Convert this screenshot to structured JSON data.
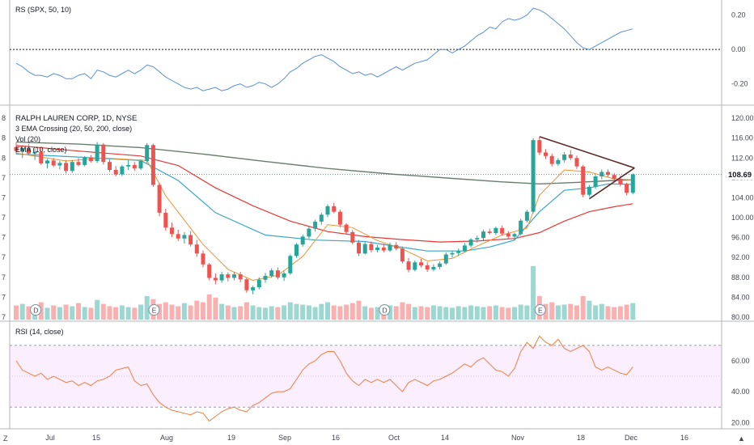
{
  "chart_data": {
    "type": "candlestick",
    "symbol_title": "RALPH LAUREN CORP, 1D, NYSE",
    "indicator_labels": [
      "3 EMA Crossing (20, 50, 200, close)",
      "Vol (20)",
      "EMA (10, close)"
    ],
    "last_price_label": "108.69",
    "price_axis": {
      "ticks": [
        "120.00",
        "116.00",
        "112.00",
        "108.00",
        "104.00",
        "100.00",
        "96.00",
        "92.00",
        "88.00",
        "84.00",
        "80.00"
      ],
      "ylim": [
        79.5,
        121
      ]
    },
    "left_tick_labels": [
      "8",
      "8",
      "8",
      "7",
      "7",
      "7",
      "7",
      "7",
      "7",
      "7",
      "7"
    ],
    "x_axis": {
      "labels": [
        "Jul",
        "15",
        "Aug",
        "19",
        "Sep",
        "16",
        "Oct",
        "14",
        "Nov",
        "18",
        "Dec",
        "16"
      ]
    },
    "event_markers": [
      "D",
      "E",
      "D",
      "E"
    ],
    "candles": [
      [
        114.2,
        115.1,
        112.8,
        113.4
      ],
      [
        113.4,
        114.6,
        112.0,
        114.0
      ],
      [
        114.0,
        114.8,
        112.5,
        112.9
      ],
      [
        112.9,
        113.9,
        111.6,
        113.2
      ],
      [
        113.2,
        113.8,
        110.6,
        110.9
      ],
      [
        110.9,
        111.8,
        109.9,
        111.5
      ],
      [
        111.5,
        112.0,
        110.2,
        110.5
      ],
      [
        110.5,
        111.4,
        109.7,
        111.0
      ],
      [
        111.0,
        111.6,
        108.9,
        109.4
      ],
      [
        109.4,
        111.6,
        109.0,
        111.2
      ],
      [
        111.2,
        112.0,
        110.3,
        110.6
      ],
      [
        110.6,
        112.4,
        110.3,
        112.1
      ],
      [
        112.1,
        112.6,
        111.1,
        111.4
      ],
      [
        111.4,
        115.2,
        111.0,
        114.7
      ],
      [
        114.7,
        115.0,
        110.7,
        111.2
      ],
      [
        111.2,
        111.7,
        109.2,
        109.6
      ],
      [
        109.6,
        110.4,
        108.3,
        108.7
      ],
      [
        108.7,
        110.6,
        108.4,
        110.3
      ],
      [
        110.3,
        111.6,
        109.6,
        110.6
      ],
      [
        110.6,
        111.2,
        109.4,
        109.9
      ],
      [
        109.9,
        111.7,
        109.6,
        111.4
      ],
      [
        111.4,
        115.0,
        111.0,
        114.6
      ],
      [
        114.6,
        114.9,
        106.2,
        106.6
      ],
      [
        106.6,
        107.0,
        100.3,
        101.0
      ],
      [
        101.0,
        101.8,
        97.4,
        98.0
      ],
      [
        98.0,
        99.0,
        96.1,
        96.7
      ],
      [
        96.7,
        97.6,
        95.3,
        95.8
      ],
      [
        95.8,
        97.1,
        94.8,
        96.5
      ],
      [
        96.5,
        97.3,
        94.2,
        94.6
      ],
      [
        94.6,
        95.5,
        92.1,
        92.8
      ],
      [
        92.8,
        93.4,
        90.0,
        90.6
      ],
      [
        90.6,
        90.9,
        87.4,
        87.9
      ],
      [
        87.9,
        88.8,
        86.6,
        87.4
      ],
      [
        87.4,
        89.1,
        86.9,
        88.6
      ],
      [
        88.6,
        89.0,
        87.2,
        87.9
      ],
      [
        87.9,
        89.1,
        87.4,
        88.6
      ],
      [
        88.6,
        89.1,
        87.0,
        87.6
      ],
      [
        87.6,
        87.9,
        84.9,
        85.4
      ],
      [
        85.4,
        86.3,
        84.6,
        86.0
      ],
      [
        86.0,
        88.0,
        85.6,
        87.5
      ],
      [
        87.5,
        88.9,
        86.9,
        88.3
      ],
      [
        88.3,
        89.8,
        87.9,
        89.4
      ],
      [
        89.4,
        90.0,
        87.6,
        88.0
      ],
      [
        88.0,
        89.2,
        87.3,
        88.8
      ],
      [
        88.8,
        92.6,
        88.5,
        92.3
      ],
      [
        92.3,
        94.9,
        91.9,
        94.6
      ],
      [
        94.6,
        96.6,
        94.2,
        96.2
      ],
      [
        96.2,
        98.2,
        95.8,
        97.8
      ],
      [
        97.8,
        99.6,
        97.2,
        99.2
      ],
      [
        99.2,
        101.0,
        98.6,
        100.6
      ],
      [
        100.6,
        102.7,
        100.1,
        102.3
      ],
      [
        102.3,
        103.0,
        100.9,
        101.2
      ],
      [
        101.2,
        101.6,
        98.1,
        98.6
      ],
      [
        98.6,
        98.9,
        96.6,
        97.1
      ],
      [
        97.1,
        97.5,
        94.6,
        95.0
      ],
      [
        95.0,
        95.5,
        92.3,
        92.8
      ],
      [
        92.8,
        95.1,
        92.6,
        94.7
      ],
      [
        94.7,
        95.2,
        93.0,
        93.5
      ],
      [
        93.5,
        94.5,
        93.0,
        94.0
      ],
      [
        94.0,
        94.8,
        93.0,
        93.4
      ],
      [
        93.4,
        95.0,
        93.1,
        94.5
      ],
      [
        94.5,
        95.1,
        93.4,
        93.8
      ],
      [
        93.8,
        94.2,
        90.8,
        91.2
      ],
      [
        91.2,
        91.9,
        89.0,
        89.5
      ],
      [
        89.5,
        91.4,
        89.2,
        91.0
      ],
      [
        91.0,
        91.7,
        90.0,
        90.4
      ],
      [
        90.4,
        91.0,
        89.1,
        89.6
      ],
      [
        89.6,
        90.6,
        89.2,
        90.1
      ],
      [
        90.1,
        91.2,
        89.6,
        90.8
      ],
      [
        90.8,
        93.0,
        90.5,
        92.6
      ],
      [
        92.6,
        93.4,
        92.0,
        92.9
      ],
      [
        92.9,
        93.8,
        92.3,
        93.3
      ],
      [
        93.3,
        94.9,
        93.0,
        94.4
      ],
      [
        94.4,
        95.9,
        94.0,
        95.6
      ],
      [
        95.6,
        96.4,
        95.0,
        95.9
      ],
      [
        95.9,
        97.6,
        95.4,
        97.2
      ],
      [
        97.2,
        97.8,
        96.6,
        96.9
      ],
      [
        96.9,
        98.2,
        96.5,
        97.9
      ],
      [
        97.9,
        98.4,
        96.4,
        96.8
      ],
      [
        96.8,
        97.3,
        95.7,
        96.2
      ],
      [
        96.2,
        97.0,
        95.6,
        96.7
      ],
      [
        96.7,
        99.8,
        96.4,
        99.4
      ],
      [
        99.4,
        101.6,
        99.0,
        101.2
      ],
      [
        101.2,
        116.0,
        100.9,
        115.6
      ],
      [
        115.6,
        116.2,
        112.6,
        113.1
      ],
      [
        113.1,
        113.8,
        111.8,
        112.4
      ],
      [
        112.4,
        112.9,
        110.3,
        110.8
      ],
      [
        110.8,
        112.0,
        110.4,
        111.6
      ],
      [
        111.6,
        113.2,
        111.1,
        112.7
      ],
      [
        112.7,
        113.6,
        111.6,
        112.0
      ],
      [
        112.0,
        112.5,
        109.8,
        110.3
      ],
      [
        110.3,
        110.6,
        104.1,
        104.6
      ],
      [
        104.6,
        106.6,
        104.2,
        106.2
      ],
      [
        106.2,
        108.6,
        105.8,
        108.3
      ],
      [
        108.3,
        109.7,
        107.7,
        109.2
      ],
      [
        109.2,
        109.7,
        108.2,
        108.6
      ],
      [
        108.6,
        109.0,
        107.2,
        107.8
      ],
      [
        107.8,
        108.5,
        106.3,
        106.7
      ],
      [
        106.7,
        107.0,
        104.5,
        105.0
      ],
      [
        105.0,
        108.9,
        104.7,
        108.7
      ]
    ],
    "ema20_points": [
      [
        0,
        112.8
      ],
      [
        10,
        112.2
      ],
      [
        20,
        111.5
      ],
      [
        26,
        107.5
      ],
      [
        32,
        101.0
      ],
      [
        40,
        96.5
      ],
      [
        48,
        95.5
      ],
      [
        56,
        95.2
      ],
      [
        60,
        94.4
      ],
      [
        66,
        93.3
      ],
      [
        72,
        93.3
      ],
      [
        76,
        94.1
      ],
      [
        80,
        95.5
      ],
      [
        84,
        101.2
      ],
      [
        88,
        105.5
      ],
      [
        92,
        106.0
      ],
      [
        95,
        106.8
      ],
      [
        99,
        106.7
      ]
    ],
    "ema50_points": [
      [
        0,
        114.5
      ],
      [
        10,
        113.4
      ],
      [
        20,
        112.4
      ],
      [
        26,
        110.5
      ],
      [
        32,
        106.0
      ],
      [
        38,
        102.4
      ],
      [
        44,
        99.3
      ],
      [
        50,
        97.2
      ],
      [
        56,
        96.2
      ],
      [
        62,
        95.6
      ],
      [
        68,
        95.1
      ],
      [
        74,
        95.3
      ],
      [
        80,
        95.8
      ],
      [
        84,
        97.0
      ],
      [
        88,
        99.3
      ],
      [
        92,
        101.2
      ],
      [
        96,
        102.2
      ],
      [
        99,
        102.8
      ]
    ],
    "ema200_points": [
      [
        0,
        115.2
      ],
      [
        10,
        114.8
      ],
      [
        20,
        114.1
      ],
      [
        30,
        112.8
      ],
      [
        40,
        111.3
      ],
      [
        50,
        109.9
      ],
      [
        60,
        108.8
      ],
      [
        70,
        107.9
      ],
      [
        78,
        107.2
      ],
      [
        84,
        106.8
      ],
      [
        90,
        107.1
      ],
      [
        96,
        107.5
      ],
      [
        99,
        107.6
      ]
    ],
    "ema10_points": [
      [
        0,
        113.0
      ],
      [
        8,
        111.4
      ],
      [
        14,
        112.0
      ],
      [
        21,
        111.5
      ],
      [
        24,
        104.4
      ],
      [
        30,
        94.6
      ],
      [
        34,
        89.6
      ],
      [
        38,
        87.4
      ],
      [
        42,
        88.4
      ],
      [
        46,
        92.2
      ],
      [
        50,
        98.6
      ],
      [
        54,
        98.0
      ],
      [
        58,
        95.4
      ],
      [
        62,
        93.7
      ],
      [
        66,
        91.3
      ],
      [
        70,
        91.8
      ],
      [
        74,
        94.3
      ],
      [
        78,
        96.5
      ],
      [
        82,
        97.9
      ],
      [
        84,
        104.5
      ],
      [
        88,
        109.6
      ],
      [
        92,
        109.2
      ],
      [
        96,
        107.8
      ],
      [
        99,
        107.6
      ]
    ],
    "volume": [
      18,
      20,
      17,
      16,
      22,
      15,
      18,
      16,
      19,
      17,
      21,
      16,
      15,
      25,
      20,
      17,
      16,
      18,
      16,
      15,
      19,
      30,
      26,
      20,
      22,
      19,
      17,
      21,
      18,
      24,
      22,
      32,
      28,
      20,
      18,
      16,
      17,
      22,
      18,
      16,
      15,
      17,
      16,
      18,
      22,
      20,
      19,
      18,
      16,
      20,
      22,
      18,
      17,
      19,
      21,
      24,
      17,
      15,
      16,
      16,
      18,
      17,
      22,
      20,
      16,
      17,
      16,
      18,
      17,
      16,
      15,
      17,
      16,
      18,
      17,
      16,
      17,
      18,
      16,
      15,
      16,
      19,
      18,
      68,
      30,
      20,
      22,
      18,
      19,
      20,
      18,
      30,
      24,
      18,
      20,
      17,
      16,
      17,
      19,
      21
    ],
    "relative_strength": {
      "label": "RS (SPX, 50, 10)",
      "ticks": [
        "0.20",
        "0.00",
        "-0.20"
      ],
      "ylim": [
        -0.3,
        0.25
      ],
      "values": [
        -0.08,
        -0.1,
        -0.13,
        -0.15,
        -0.15,
        -0.16,
        -0.14,
        -0.15,
        -0.17,
        -0.17,
        -0.15,
        -0.14,
        -0.17,
        -0.12,
        -0.13,
        -0.15,
        -0.16,
        -0.14,
        -0.12,
        -0.14,
        -0.12,
        -0.09,
        -0.1,
        -0.13,
        -0.16,
        -0.18,
        -0.2,
        -0.22,
        -0.23,
        -0.22,
        -0.24,
        -0.23,
        -0.22,
        -0.24,
        -0.23,
        -0.21,
        -0.2,
        -0.22,
        -0.21,
        -0.19,
        -0.2,
        -0.22,
        -0.2,
        -0.17,
        -0.13,
        -0.11,
        -0.08,
        -0.06,
        -0.04,
        -0.03,
        -0.05,
        -0.07,
        -0.1,
        -0.12,
        -0.14,
        -0.13,
        -0.15,
        -0.14,
        -0.16,
        -0.14,
        -0.12,
        -0.1,
        -0.12,
        -0.1,
        -0.08,
        -0.07,
        -0.06,
        -0.03,
        0.0,
        0.0,
        -0.02,
        0.0,
        0.02,
        0.05,
        0.08,
        0.1,
        0.13,
        0.12,
        0.16,
        0.18,
        0.17,
        0.18,
        0.2,
        0.24,
        0.23,
        0.21,
        0.18,
        0.15,
        0.12,
        0.08,
        0.04,
        0.01,
        0.0,
        0.02,
        0.04,
        0.06,
        0.08,
        0.1,
        0.11,
        0.12
      ]
    },
    "rsi": {
      "label": "RSI (14, close)",
      "ticks": [
        "60.00",
        "40.00",
        "20.00"
      ],
      "band": [
        30,
        70
      ],
      "ylim": [
        17,
        82
      ],
      "values": [
        60,
        54,
        52,
        50,
        52,
        48,
        50,
        48,
        46,
        47,
        44,
        46,
        44,
        47,
        48,
        50,
        54,
        55,
        56,
        47,
        44,
        45,
        38,
        33,
        30,
        28,
        27,
        26,
        25,
        27,
        26,
        21,
        24,
        27,
        29,
        30,
        28,
        27,
        31,
        33,
        36,
        39,
        40,
        40,
        42,
        48,
        54,
        58,
        60,
        64,
        66,
        66,
        60,
        52,
        47,
        44,
        48,
        46,
        48,
        46,
        48,
        44,
        40,
        46,
        48,
        46,
        44,
        47,
        48,
        50,
        52,
        55,
        58,
        56,
        60,
        62,
        58,
        54,
        53,
        50,
        55,
        66,
        72,
        68,
        76,
        72,
        70,
        74,
        68,
        66,
        68,
        70,
        66,
        56,
        54,
        56,
        54,
        52,
        51,
        56
      ]
    }
  }
}
